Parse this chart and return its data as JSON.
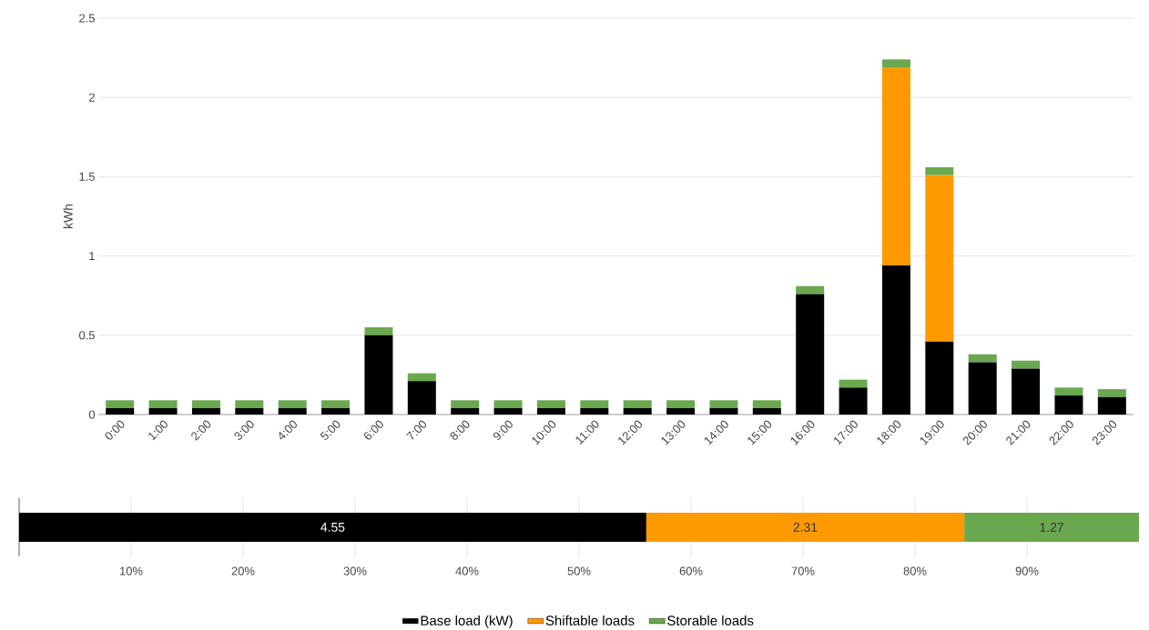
{
  "chart_data": [
    {
      "type": "bar",
      "ylabel": "kWh",
      "stacked": true,
      "grid": "y",
      "categories": [
        "0:00",
        "1:00",
        "2:00",
        "3:00",
        "4:00",
        "5:00",
        "6:00",
        "7:00",
        "8:00",
        "9:00",
        "10:00",
        "11:00",
        "12:00",
        "13:00",
        "14:00",
        "15:00",
        "16:00",
        "17:00",
        "18:00",
        "19:00",
        "20:00",
        "21:00",
        "22:00",
        "23:00"
      ],
      "series": [
        {
          "color": "#000000",
          "values": [
            0.04,
            0.04,
            0.04,
            0.04,
            0.04,
            0.04,
            0.5,
            0.21,
            0.04,
            0.04,
            0.04,
            0.04,
            0.04,
            0.04,
            0.04,
            0.04,
            0.76,
            0.17,
            0.94,
            0.46,
            0.33,
            0.29,
            0.12,
            0.11
          ]
        },
        {
          "color": "#ff9900",
          "values": [
            0,
            0,
            0,
            0,
            0,
            0,
            0,
            0,
            0,
            0,
            0,
            0,
            0,
            0,
            0,
            0,
            0,
            0,
            1.25,
            1.05,
            0,
            0,
            0,
            0
          ]
        },
        {
          "color": "#6aa84f",
          "values": [
            0.05,
            0.05,
            0.05,
            0.05,
            0.05,
            0.05,
            0.05,
            0.05,
            0.05,
            0.05,
            0.05,
            0.05,
            0.05,
            0.05,
            0.05,
            0.05,
            0.05,
            0.05,
            0.05,
            0.05,
            0.05,
            0.05,
            0.05,
            0.05
          ]
        }
      ],
      "ylim": [
        0,
        2.5
      ],
      "yticks": [
        0,
        0.5,
        1,
        1.5,
        2,
        2.5
      ]
    },
    {
      "type": "bar",
      "orientation": "horizontal",
      "stacked": true,
      "grid": "x",
      "legend": "bottom",
      "categories": [
        null
      ],
      "series": [
        {
          "name": "Base load (kW)",
          "color": "#000000",
          "values": [
            56
          ]
        },
        {
          "name": "Shiftable loads",
          "color": "#ff9900",
          "values": [
            28.4
          ]
        },
        {
          "name": "Storable loads",
          "color": "#6aa84f",
          "values": [
            15.6
          ]
        }
      ],
      "annotations": [
        "4.55",
        "2.31",
        "1.27"
      ],
      "xlim": [
        0,
        100
      ],
      "xticks": [
        {
          "value": 10,
          "label": "10%"
        },
        {
          "value": 20,
          "label": "20%"
        },
        {
          "value": 30,
          "label": "30%"
        },
        {
          "value": 40,
          "label": "40%"
        },
        {
          "value": 50,
          "label": "50%"
        },
        {
          "value": 60,
          "label": "60%"
        },
        {
          "value": 70,
          "label": "70%"
        },
        {
          "value": 80,
          "label": "80%"
        },
        {
          "value": 90,
          "label": "90%"
        }
      ]
    }
  ]
}
